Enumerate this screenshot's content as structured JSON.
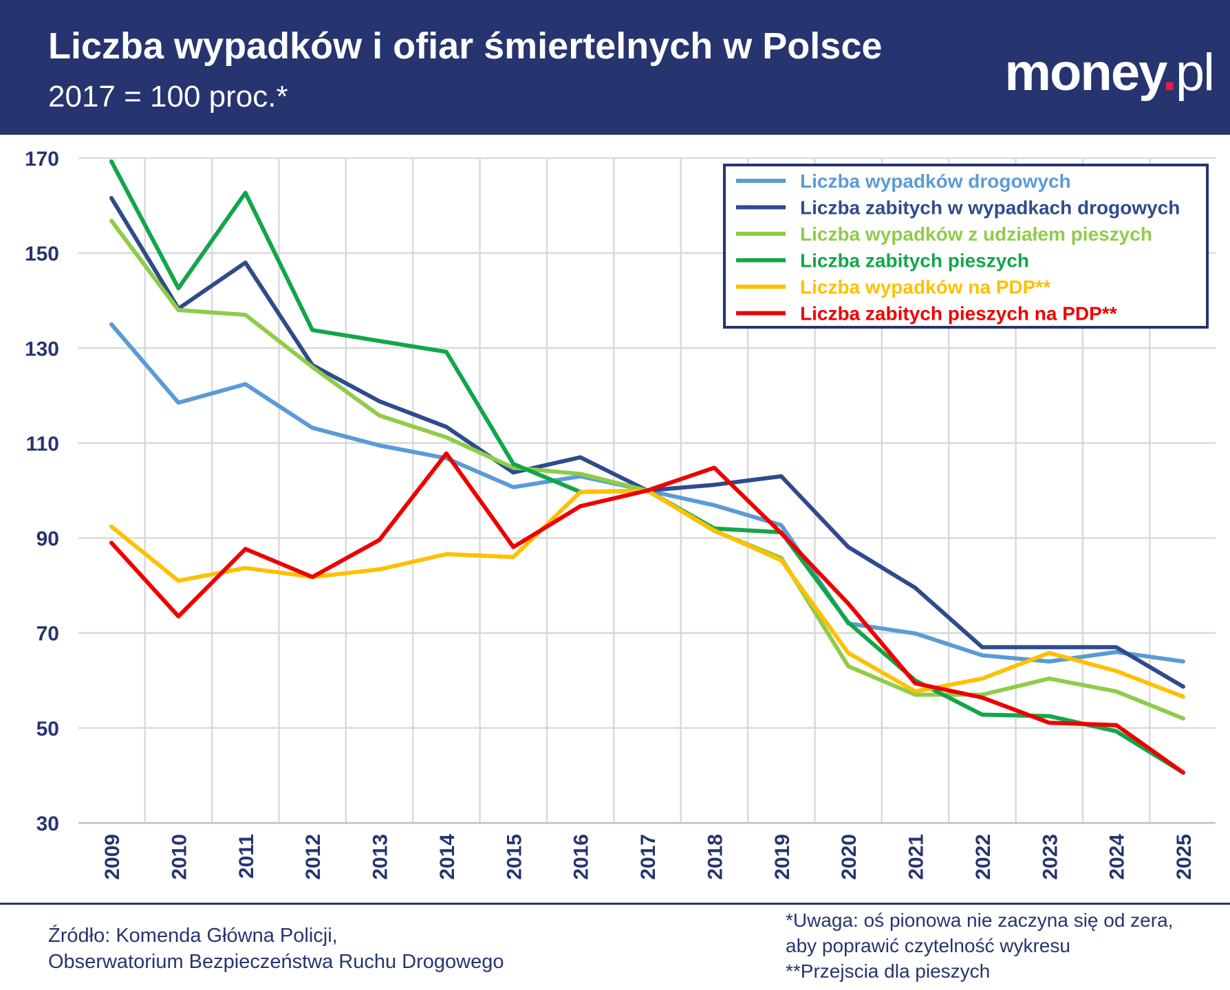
{
  "header": {
    "title": "Liczba wypadków i ofiar śmiertelnych w Polsce",
    "subtitle": "2017 = 100 proc.*",
    "logo": "money.pl"
  },
  "footer": {
    "source_line1": "Źródło: Komenda Główna Policji,",
    "source_line2": "Obserwatorium Bezpieczeństwa Ruchu Drogowego",
    "note_line1": "*Uwaga: oś pionowa nie zaczyna się od zera,",
    "note_line2": "aby poprawić czytelność wykresu",
    "note_line3": "**Przejscia dla pieszych"
  },
  "chart_data": {
    "type": "line",
    "title": "Liczba wypadków i ofiar śmiertelnych w Polsce",
    "subtitle": "2017 = 100 proc.*",
    "x": [
      "2009",
      "2010",
      "2011",
      "2012",
      "2013",
      "2014",
      "2015",
      "2016",
      "2017",
      "2018",
      "2019",
      "2020",
      "2021",
      "2022",
      "2023",
      "2024",
      "2025"
    ],
    "ylim": [
      30,
      170
    ],
    "yticks": [
      170,
      150,
      130,
      110,
      90,
      70,
      50,
      30
    ],
    "grid": true,
    "legend_position": "top-right",
    "series": [
      {
        "name": "Liczba wypadków drogowych",
        "color": "#5b9bd5",
        "values": [
          135,
          118.5,
          122.4,
          113.2,
          109.5,
          106.8,
          100.7,
          103,
          100,
          96.9,
          92.7,
          72,
          69.9,
          65.3,
          64,
          66,
          64
        ]
      },
      {
        "name": "Liczba zabitych w wypadkach drogowych",
        "color": "#2f4b8c",
        "values": [
          161.6,
          138.3,
          148,
          126.4,
          118.8,
          113.4,
          103.8,
          107,
          100,
          101.2,
          103,
          88.1,
          79.5,
          67,
          67,
          67,
          58.7
        ]
      },
      {
        "name": "Liczba wypadków z udziałem pieszych",
        "color": "#8fcc4a",
        "values": [
          156.8,
          138,
          137,
          126,
          115.8,
          111.2,
          104.8,
          103.5,
          100,
          91.5,
          85.8,
          63,
          57,
          57,
          60.4,
          57.7,
          52
        ]
      },
      {
        "name": "Liczba zabitych pieszych",
        "color": "#12a64a",
        "values": [
          169.3,
          142.6,
          162.7,
          133.8,
          131.5,
          129.2,
          105.6,
          99.7,
          100,
          92,
          91.2,
          72.2,
          60,
          52.8,
          52.5,
          49.3,
          40.6
        ]
      },
      {
        "name": "Liczba wypadków na PDP**",
        "color": "#ffc000",
        "values": [
          92.4,
          81,
          83.7,
          81.8,
          83.4,
          86.6,
          86,
          99.7,
          100,
          91.6,
          85.3,
          65.8,
          57.7,
          60.4,
          65.8,
          62,
          56.6
        ]
      },
      {
        "name": "Liczba zabitych pieszych na PDP**",
        "color": "#ee0000",
        "values": [
          89,
          73.5,
          87.7,
          81.8,
          89.6,
          107.8,
          88.1,
          96.7,
          100,
          104.8,
          91,
          76.2,
          59.4,
          56.4,
          51.1,
          50.6,
          40.6
        ]
      }
    ]
  }
}
